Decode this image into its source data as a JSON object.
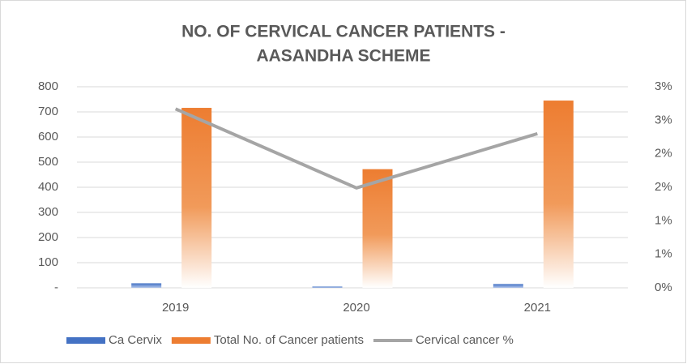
{
  "chart_data": {
    "type": "bar_line",
    "title": [
      "NO. OF CERVICAL CANCER PATIENTS -",
      "AASANDHA SCHEME"
    ],
    "categories": [
      "2019",
      "2020",
      "2021"
    ],
    "series": [
      {
        "name": "Ca Cervix",
        "type": "bar",
        "color": "#4472c4",
        "values": [
          18,
          5,
          15
        ]
      },
      {
        "name": "Total No. of Cancer patients",
        "type": "bar",
        "color": "#ed7d31",
        "values": [
          716,
          472,
          745
        ]
      },
      {
        "name": "Cervical cancer %",
        "type": "line",
        "color": "#a5a5a5",
        "axis": "y2",
        "values": [
          2.67,
          1.49,
          2.3
        ]
      }
    ],
    "ylim": [
      0,
      800
    ],
    "yticks": [
      {
        "value": 0,
        "label": "-"
      },
      100,
      200,
      300,
      400,
      500,
      600,
      700,
      800
    ],
    "y2lim": [
      0,
      3
    ],
    "y2ticks": [
      {
        "value": 0,
        "label": "0%"
      },
      {
        "value": 0.5,
        "label": "1%"
      },
      {
        "value": 1,
        "label": "1%"
      },
      {
        "value": 1.5,
        "label": "2%"
      },
      {
        "value": 2,
        "label": "2%"
      },
      {
        "value": 2.5,
        "label": "3%"
      },
      {
        "value": 3,
        "label": "3%"
      }
    ],
    "grid": true,
    "legend": "bottom"
  }
}
